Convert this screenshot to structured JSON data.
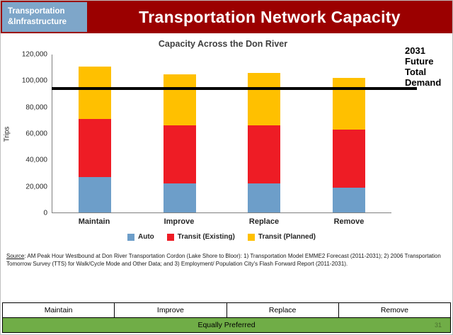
{
  "header": {
    "dept_line1": "Transportation",
    "dept_line2": "&Infrastructure",
    "title": "Transportation Network Capacity"
  },
  "chart": {
    "title": "Capacity Across the Don River",
    "demand_label": "2031 Future Total Demand"
  },
  "chart_data": {
    "type": "bar",
    "stacked": true,
    "title": "Capacity Across the Don River",
    "xlabel": "",
    "ylabel": "Trips",
    "ylim": [
      0,
      120000
    ],
    "grid": false,
    "legend_position": "bottom",
    "categories": [
      "Maintain",
      "Improve",
      "Replace",
      "Remove"
    ],
    "series": [
      {
        "name": "Auto",
        "color": "#6d9ec9",
        "values": [
          27000,
          22000,
          22000,
          19000
        ]
      },
      {
        "name": "Transit (Existing)",
        "color": "#ee1c25",
        "values": [
          44000,
          44000,
          44000,
          44000
        ]
      },
      {
        "name": "Transit (Planned)",
        "color": "#ffc000",
        "values": [
          40000,
          39000,
          40000,
          39000
        ]
      }
    ],
    "yticks": [
      {
        "value": 0,
        "label": "0"
      },
      {
        "value": 20000,
        "label": "20,000"
      },
      {
        "value": 40000,
        "label": "40,000"
      },
      {
        "value": 60000,
        "label": "60,000"
      },
      {
        "value": 80000,
        "label": "80,000"
      },
      {
        "value": 100000,
        "label": "100,000"
      },
      {
        "value": 120000,
        "label": "120,000"
      }
    ],
    "demand_line": {
      "value": 94000,
      "label": "2031 Future Total Demand",
      "color": "#000000"
    }
  },
  "source": {
    "label": "Source",
    "text": ": AM Peak Hour Westbound at Don River Transportation Cordon (Lake Shore to Bloor): 1) Transportation Model EMME2 Forecast (2011-2031); 2) 2006 Transportation Tomorrow Survey (TTS) for Walk/Cycle Mode and Other Data; and 3) Employment/ Population City's Flash Forward Report (2011-2031)."
  },
  "table": {
    "headers": [
      "Maintain",
      "Improve",
      "Replace",
      "Remove"
    ],
    "footer": "Equally Preferred"
  },
  "page_number": "31",
  "colors": {
    "header_bg": "#9b0000",
    "dept_bg": "#7ea6c9",
    "footer_green": "#70ad47",
    "demand_line": "#000000"
  }
}
